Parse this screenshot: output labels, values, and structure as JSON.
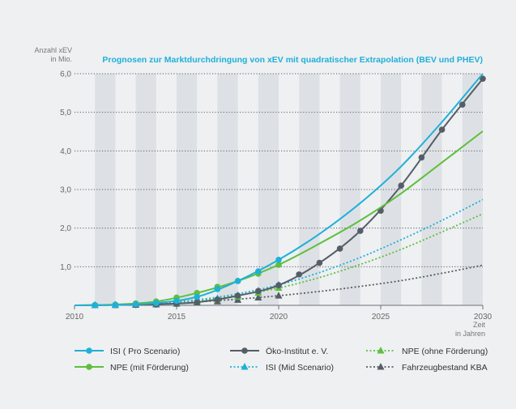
{
  "chart_data": {
    "type": "line",
    "title": "Prognosen zur Marktdurchdringung von xEV mit quadratischer Extrapolation (BEV und PHEV)",
    "ylabel_line1": "Anzahl xEV",
    "ylabel_line2": "in Mio.",
    "xlabel_line1": "Zeit",
    "xlabel_line2": "in Jahren",
    "xlim": [
      2010,
      2030
    ],
    "ylim": [
      0,
      6
    ],
    "xticks": [
      {
        "value": 2010,
        "label": "2010"
      },
      {
        "value": 2015,
        "label": "2015"
      },
      {
        "value": 2020,
        "label": "2020"
      },
      {
        "value": 2025,
        "label": "2025"
      },
      {
        "value": 2030,
        "label": "2030"
      }
    ],
    "yticks": [
      {
        "value": 0,
        "label": ""
      },
      {
        "value": 1,
        "label": "1,0"
      },
      {
        "value": 2,
        "label": "2,0"
      },
      {
        "value": 3,
        "label": "3,0"
      },
      {
        "value": 4,
        "label": "4,0"
      },
      {
        "value": 5,
        "label": "5,0"
      },
      {
        "value": 6,
        "label": "6,0"
      }
    ],
    "series": [
      {
        "name": "Fahrzeugbestand KBA",
        "color": "#555d66",
        "dash": "dot",
        "marker": "triangle",
        "points": [
          [
            2011,
            0.003
          ],
          [
            2012,
            0.005
          ],
          [
            2013,
            0.01
          ],
          [
            2014,
            0.02
          ],
          [
            2015,
            0.04
          ],
          [
            2016,
            0.07
          ],
          [
            2017,
            0.1
          ],
          [
            2018,
            0.14
          ],
          [
            2019,
            0.2
          ],
          [
            2020,
            0.25
          ]
        ],
        "curve": [
          [
            2010,
            0
          ],
          [
            2012,
            0.01
          ],
          [
            2014,
            0.04
          ],
          [
            2016,
            0.09
          ],
          [
            2018,
            0.16
          ],
          [
            2020,
            0.25
          ],
          [
            2022,
            0.36
          ],
          [
            2024,
            0.49
          ],
          [
            2026,
            0.64
          ],
          [
            2028,
            0.83
          ],
          [
            2030,
            1.04
          ]
        ]
      },
      {
        "name": "NPE (ohne Förderung)",
        "color": "#5ebf3c",
        "dash": "dot",
        "marker": "triangle",
        "points": [
          [
            2011,
            0.003
          ],
          [
            2012,
            0.01
          ],
          [
            2013,
            0.02
          ],
          [
            2014,
            0.04
          ],
          [
            2015,
            0.06
          ],
          [
            2016,
            0.1
          ],
          [
            2017,
            0.15
          ],
          [
            2018,
            0.22
          ],
          [
            2019,
            0.32
          ],
          [
            2020,
            0.45
          ]
        ],
        "curve": [
          [
            2010,
            0
          ],
          [
            2012,
            0.01
          ],
          [
            2014,
            0.05
          ],
          [
            2016,
            0.12
          ],
          [
            2018,
            0.26
          ],
          [
            2020,
            0.45
          ],
          [
            2022,
            0.72
          ],
          [
            2024,
            1.06
          ],
          [
            2026,
            1.45
          ],
          [
            2028,
            1.9
          ],
          [
            2030,
            2.37
          ]
        ]
      },
      {
        "name": "ISI (Mid Scenario)",
        "color": "#1fb0d8",
        "dash": "dot",
        "marker": "triangle",
        "points": [
          [
            2011,
            0.003
          ],
          [
            2012,
            0.01
          ],
          [
            2013,
            0.02
          ],
          [
            2014,
            0.04
          ],
          [
            2015,
            0.07
          ],
          [
            2016,
            0.12
          ],
          [
            2017,
            0.18
          ],
          [
            2018,
            0.26
          ],
          [
            2019,
            0.38
          ],
          [
            2020,
            0.53
          ]
        ],
        "curve": [
          [
            2010,
            0
          ],
          [
            2012,
            0.01
          ],
          [
            2014,
            0.05
          ],
          [
            2016,
            0.14
          ],
          [
            2018,
            0.3
          ],
          [
            2020,
            0.53
          ],
          [
            2022,
            0.85
          ],
          [
            2024,
            1.24
          ],
          [
            2026,
            1.7
          ],
          [
            2028,
            2.2
          ],
          [
            2030,
            2.74
          ]
        ]
      },
      {
        "name": "Öko-Institut e. V.",
        "color": "#555d66",
        "dash": "solid",
        "marker": "circle",
        "points": [
          [
            2011,
            0.003
          ],
          [
            2012,
            0.005
          ],
          [
            2013,
            0.01
          ],
          [
            2014,
            0.02
          ],
          [
            2015,
            0.04
          ],
          [
            2016,
            0.08
          ],
          [
            2017,
            0.15
          ],
          [
            2018,
            0.25
          ],
          [
            2019,
            0.37
          ],
          [
            2020,
            0.52
          ],
          [
            2021,
            0.8
          ],
          [
            2022,
            1.1
          ],
          [
            2023,
            1.47
          ],
          [
            2024,
            1.93
          ],
          [
            2025,
            2.45
          ],
          [
            2026,
            3.1
          ],
          [
            2027,
            3.83
          ],
          [
            2028,
            4.55
          ],
          [
            2029,
            5.2
          ],
          [
            2030,
            5.87
          ]
        ],
        "curve": [
          [
            2010,
            0
          ],
          [
            2012,
            0.01
          ],
          [
            2014,
            0.03
          ],
          [
            2016,
            0.08
          ],
          [
            2018,
            0.25
          ],
          [
            2020,
            0.52
          ],
          [
            2022,
            1.1
          ],
          [
            2024,
            1.93
          ],
          [
            2026,
            3.1
          ],
          [
            2028,
            4.55
          ],
          [
            2030,
            5.87
          ]
        ]
      },
      {
        "name": "NPE (mit Förderung)",
        "color": "#5ebf3c",
        "dash": "solid",
        "marker": "circle",
        "points": [
          [
            2011,
            0.003
          ],
          [
            2012,
            0.02
          ],
          [
            2013,
            0.05
          ],
          [
            2014,
            0.1
          ],
          [
            2015,
            0.2
          ],
          [
            2016,
            0.32
          ],
          [
            2017,
            0.48
          ],
          [
            2018,
            0.63
          ],
          [
            2019,
            0.82
          ],
          [
            2020,
            1.05
          ]
        ],
        "curve": [
          [
            2010,
            0
          ],
          [
            2012,
            0.02
          ],
          [
            2014,
            0.1
          ],
          [
            2016,
            0.32
          ],
          [
            2018,
            0.63
          ],
          [
            2020,
            1.05
          ],
          [
            2022,
            1.6
          ],
          [
            2024,
            2.2
          ],
          [
            2026,
            2.9
          ],
          [
            2028,
            3.7
          ],
          [
            2030,
            4.51
          ]
        ]
      },
      {
        "name": "ISI ( Pro Scenario)",
        "color": "#1fb0d8",
        "dash": "solid",
        "marker": "circle",
        "points": [
          [
            2011,
            0.003
          ],
          [
            2012,
            0.01
          ],
          [
            2013,
            0.03
          ],
          [
            2014,
            0.06
          ],
          [
            2015,
            0.12
          ],
          [
            2016,
            0.22
          ],
          [
            2017,
            0.42
          ],
          [
            2018,
            0.63
          ],
          [
            2019,
            0.88
          ],
          [
            2020,
            1.18
          ]
        ],
        "curve": [
          [
            2010,
            0
          ],
          [
            2012,
            0.01
          ],
          [
            2014,
            0.06
          ],
          [
            2016,
            0.22
          ],
          [
            2018,
            0.63
          ],
          [
            2020,
            1.18
          ],
          [
            2022,
            1.85
          ],
          [
            2024,
            2.65
          ],
          [
            2026,
            3.6
          ],
          [
            2028,
            4.75
          ],
          [
            2030,
            6.0
          ]
        ]
      }
    ],
    "legend": [
      {
        "series": "ISI ( Pro Scenario)",
        "label": "ISI ( Pro Scenario)"
      },
      {
        "series": "Öko-Institut e. V.",
        "label": "Öko-Institut e. V."
      },
      {
        "series": "NPE (ohne Förderung)",
        "label": "NPE (ohne Förderung)"
      },
      {
        "series": "NPE (mit Förderung)",
        "label": "NPE (mit Förderung)"
      },
      {
        "series": "ISI (Mid Scenario)",
        "label": "ISI (Mid Scenario)"
      },
      {
        "series": "Fahrzeugbestand KBA",
        "label": "Fahrzeugbestand KBA"
      }
    ]
  }
}
